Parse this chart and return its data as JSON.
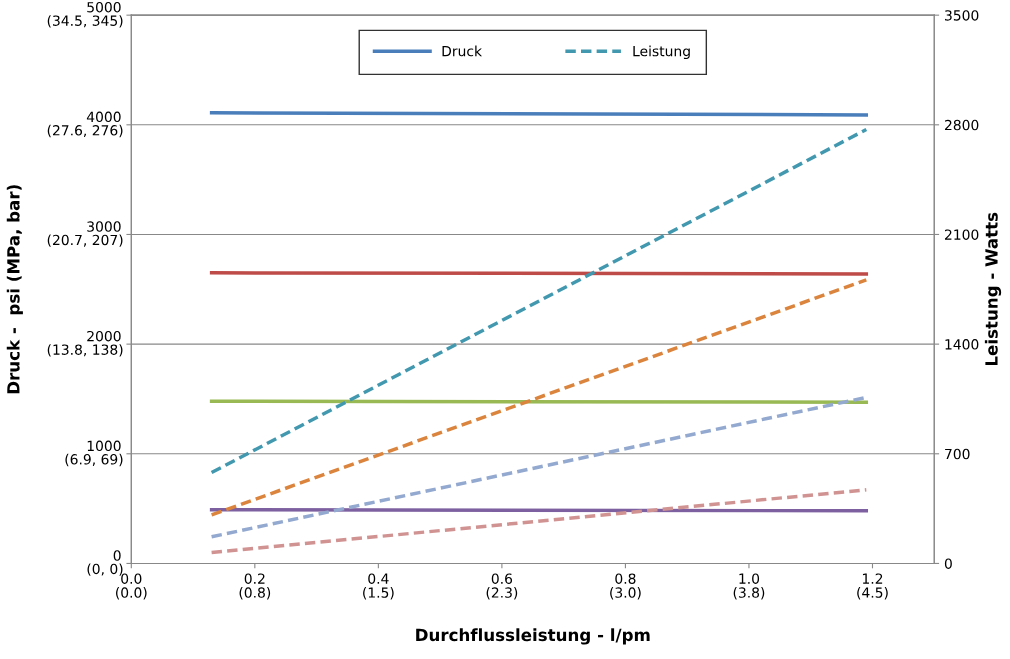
{
  "chart_data": {
    "type": "line",
    "xlabel": "Durchflussleistung - l/pm",
    "ylabel": "Druck -  psi (MPa, bar)",
    "y2label": "Leistung - Watts",
    "x": [
      0.13,
      1.19
    ],
    "xlim": [
      0,
      1.3
    ],
    "xticks": [
      {
        "value": 0.0,
        "label": "0.0"
      },
      0.2,
      0.4,
      0.6,
      0.8,
      {
        "value": 1.0,
        "label": "1.0"
      },
      1.2
    ],
    "ylim": [
      0,
      5000
    ],
    "yticks": [
      0,
      1000,
      2000,
      3000,
      4000,
      5000
    ],
    "annotations": [
      "(0.0)",
      "(0.8)",
      "(1.5)",
      "(2.3)",
      "(3.0)",
      "(3.8)",
      "(4.5)",
      "(0, 0)",
      "(6.9, 69)",
      "(13.8, 138)",
      "(20.7, 207)",
      "(27.6, 276)",
      "(34.5, 345)"
    ],
    "y2lim": [
      0,
      3500
    ],
    "y2ticks": [
      0,
      700,
      1400,
      2100,
      2800,
      3500
    ],
    "grid": "y",
    "legend": "top",
    "series": [
      {
        "name": "Druck",
        "color": "#4a7ebb",
        "values": [
          4110,
          4090
        ],
        "line_style": "solid"
      },
      {
        "color": "#be4b48",
        "values": [
          2650,
          2640
        ],
        "line_style": "solid"
      },
      {
        "color": "#98b954",
        "values": [
          1480,
          1470
        ],
        "line_style": "solid"
      },
      {
        "color": "#7d60a0",
        "values": [
          490,
          480
        ],
        "line_style": "solid"
      },
      {
        "name": "Leistung",
        "color": "#4198af",
        "values": [
          580,
          2770
        ],
        "line_style": "dashed",
        "axis": "y2"
      },
      {
        "color": "#db843d",
        "values": [
          310,
          1810
        ],
        "line_style": "dashed",
        "axis": "y2"
      },
      {
        "color": "#93a9cf",
        "values": [
          170,
          1060
        ],
        "line_style": "dashed",
        "axis": "y2"
      },
      {
        "color": "#d19392",
        "values": [
          70,
          470
        ],
        "line_style": "dashed",
        "axis": "y2"
      }
    ]
  }
}
